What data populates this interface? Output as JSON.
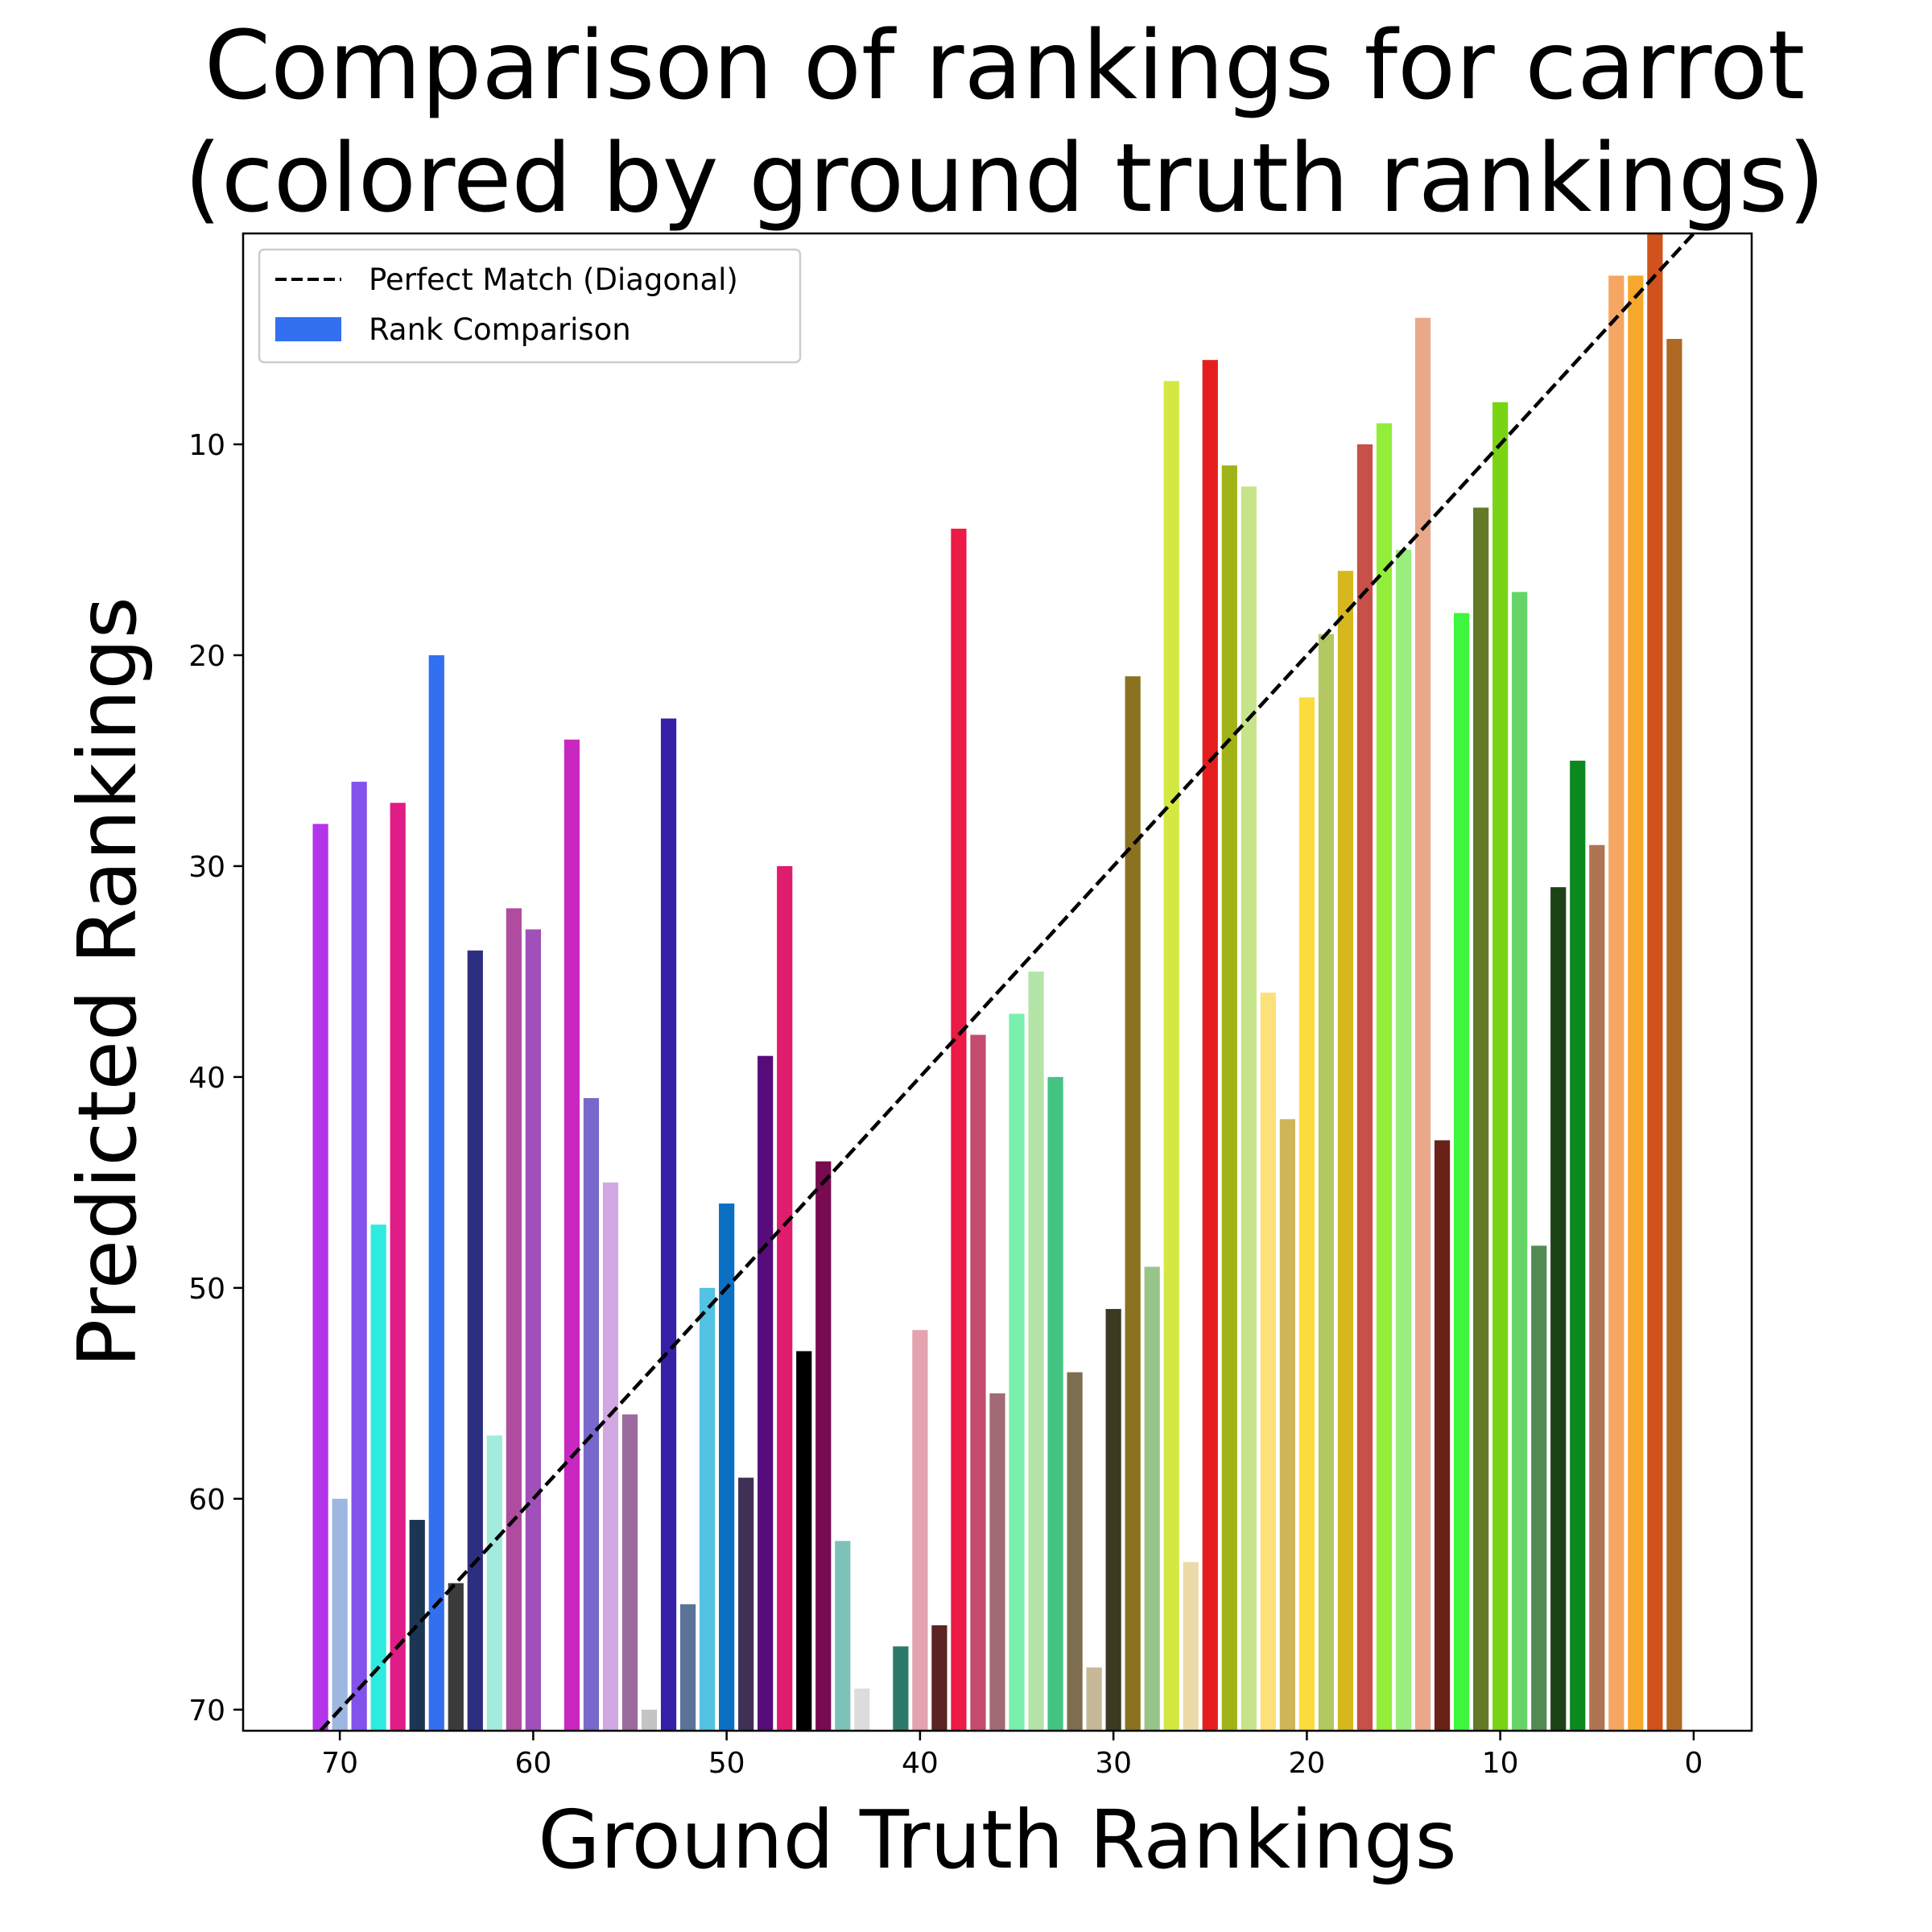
{
  "chart_data": {
    "type": "bar",
    "title_line1": "Comparison of rankings for carrot",
    "title_line2": "(colored by ground truth rankings)",
    "xlabel": "Ground Truth Rankings",
    "ylabel": "Predicted Rankings",
    "xlim": [
      75,
      -3
    ],
    "ylim": [
      71,
      0
    ],
    "x_inverted": true,
    "y_inverted": true,
    "xticks": [
      70,
      60,
      50,
      40,
      30,
      20,
      10,
      0
    ],
    "yticks": [
      10,
      20,
      30,
      40,
      50,
      60,
      70
    ],
    "grid": false,
    "legend": {
      "placement": "upper left",
      "entries": [
        {
          "label": "Perfect Match (Diagonal)",
          "kind": "dashed-line",
          "color": "#000000"
        },
        {
          "label": "Rank Comparison",
          "kind": "patch",
          "color": "#3370F0"
        }
      ]
    },
    "diagonal": {
      "from": [
        71,
        71
      ],
      "to": [
        0,
        0
      ],
      "color": "#000000",
      "style": "dashed"
    },
    "bars": [
      {
        "x": 71,
        "y": 28,
        "color": "#B434EA"
      },
      {
        "x": 70,
        "y": 60,
        "color": "#9EB7E0"
      },
      {
        "x": 69,
        "y": 26,
        "color": "#8352EA"
      },
      {
        "x": 68,
        "y": 47,
        "color": "#2DEBDF"
      },
      {
        "x": 67,
        "y": 27,
        "color": "#E01C86"
      },
      {
        "x": 66,
        "y": 61,
        "color": "#1C3553"
      },
      {
        "x": 65,
        "y": 20,
        "color": "#3370F0"
      },
      {
        "x": 64,
        "y": 64,
        "color": "#3B3B3B"
      },
      {
        "x": 63,
        "y": 34,
        "color": "#2E2E80"
      },
      {
        "x": 62,
        "y": 57,
        "color": "#A3EADF"
      },
      {
        "x": 61,
        "y": 32,
        "color": "#B04C9F"
      },
      {
        "x": 60,
        "y": 33,
        "color": "#A050B8"
      },
      {
        "x": 58,
        "y": 24,
        "color": "#C828C0"
      },
      {
        "x": 57,
        "y": 41,
        "color": "#7868CC"
      },
      {
        "x": 56,
        "y": 45,
        "color": "#D2A8E3"
      },
      {
        "x": 55,
        "y": 56,
        "color": "#9C6A9E"
      },
      {
        "x": 54,
        "y": 70,
        "color": "#C4C4C4"
      },
      {
        "x": 53,
        "y": 23,
        "color": "#3520A8"
      },
      {
        "x": 52,
        "y": 65,
        "color": "#5C7398"
      },
      {
        "x": 51,
        "y": 50,
        "color": "#54C2E2"
      },
      {
        "x": 50,
        "y": 46,
        "color": "#0B6FC4"
      },
      {
        "x": 49,
        "y": 59,
        "color": "#403056"
      },
      {
        "x": 48,
        "y": 39,
        "color": "#560C7A"
      },
      {
        "x": 47,
        "y": 30,
        "color": "#E01C6E"
      },
      {
        "x": 46,
        "y": 53,
        "color": "#000000"
      },
      {
        "x": 45,
        "y": 44,
        "color": "#780A50"
      },
      {
        "x": 44,
        "y": 62,
        "color": "#7DC2B9"
      },
      {
        "x": 43,
        "y": 69,
        "color": "#DCDCDC"
      },
      {
        "x": 41,
        "y": 67,
        "color": "#2E7A6A"
      },
      {
        "x": 40,
        "y": 52,
        "color": "#E2A2AE"
      },
      {
        "x": 39,
        "y": 66,
        "color": "#5A2424"
      },
      {
        "x": 38,
        "y": 14,
        "color": "#EC1A46"
      },
      {
        "x": 37,
        "y": 38,
        "color": "#C44C6E"
      },
      {
        "x": 36,
        "y": 55,
        "color": "#A16A74"
      },
      {
        "x": 35,
        "y": 37,
        "color": "#7AF0AE"
      },
      {
        "x": 34,
        "y": 35,
        "color": "#B4E4A8"
      },
      {
        "x": 33,
        "y": 40,
        "color": "#44C482"
      },
      {
        "x": 32,
        "y": 54,
        "color": "#7E6E50"
      },
      {
        "x": 31,
        "y": 68,
        "color": "#C7B898"
      },
      {
        "x": 30,
        "y": 51,
        "color": "#3C3A20"
      },
      {
        "x": 29,
        "y": 21,
        "color": "#8A7220"
      },
      {
        "x": 28,
        "y": 49,
        "color": "#98C48A"
      },
      {
        "x": 27,
        "y": 7,
        "color": "#D4E842"
      },
      {
        "x": 26,
        "y": 63,
        "color": "#ECDAAA"
      },
      {
        "x": 25,
        "y": 6,
        "color": "#E41E1E"
      },
      {
        "x": 24,
        "y": 11,
        "color": "#A0B418"
      },
      {
        "x": 23,
        "y": 12,
        "color": "#C6E48A"
      },
      {
        "x": 22,
        "y": 36,
        "color": "#FCE07A"
      },
      {
        "x": 21,
        "y": 42,
        "color": "#D0B45A"
      },
      {
        "x": 20,
        "y": 22,
        "color": "#FCDC3C"
      },
      {
        "x": 19,
        "y": 19,
        "color": "#B4C862"
      },
      {
        "x": 18,
        "y": 16,
        "color": "#D6B81E"
      },
      {
        "x": 17,
        "y": 10,
        "color": "#C8504A"
      },
      {
        "x": 16,
        "y": 9,
        "color": "#92EE3A"
      },
      {
        "x": 15,
        "y": 15,
        "color": "#9AEE7E"
      },
      {
        "x": 14,
        "y": 4,
        "color": "#EAA88A"
      },
      {
        "x": 13,
        "y": 43,
        "color": "#6A2218"
      },
      {
        "x": 12,
        "y": 18,
        "color": "#3EF63E"
      },
      {
        "x": 11,
        "y": 13,
        "color": "#647A26"
      },
      {
        "x": 10,
        "y": 8,
        "color": "#78D414"
      },
      {
        "x": 9,
        "y": 17,
        "color": "#64D466"
      },
      {
        "x": 8,
        "y": 48,
        "color": "#548A54"
      },
      {
        "x": 7,
        "y": 31,
        "color": "#1C4218"
      },
      {
        "x": 6,
        "y": 25,
        "color": "#0C8820"
      },
      {
        "x": 5,
        "y": 29,
        "color": "#B07454"
      },
      {
        "x": 4,
        "y": 2,
        "color": "#F4A662"
      },
      {
        "x": 3,
        "y": 2,
        "color": "#F6A82C"
      },
      {
        "x": 2,
        "y": 0,
        "color": "#D0521C"
      },
      {
        "x": 1,
        "y": 5,
        "color": "#AE6A24"
      }
    ]
  }
}
